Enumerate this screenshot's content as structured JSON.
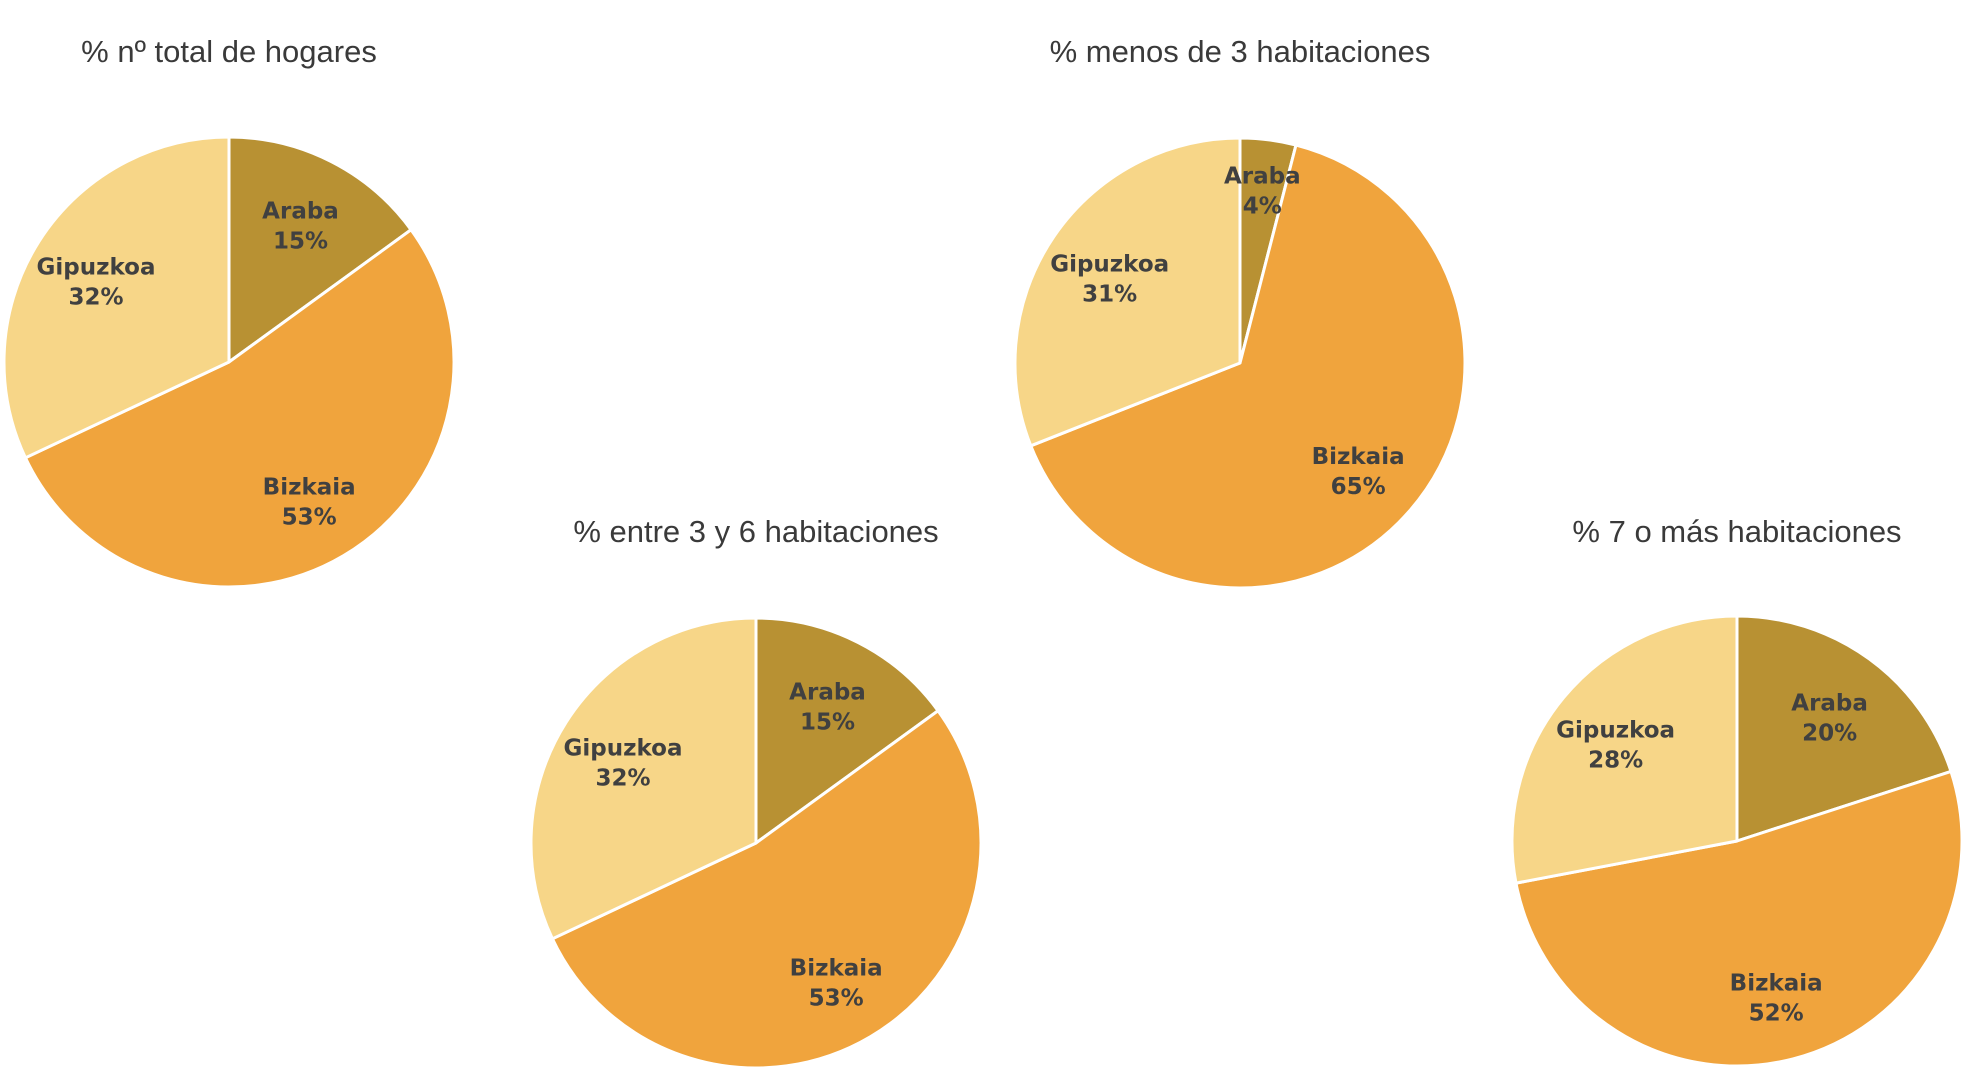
{
  "chart_data": [
    {
      "type": "pie",
      "title": "% nº total de hogares",
      "categories": [
        "Araba",
        "Bizkaia",
        "Gipuzkoa"
      ],
      "values": [
        15,
        53,
        32
      ],
      "labels": [
        "15%",
        "53%",
        "32%"
      ],
      "colors": [
        "#B89133",
        "#F0A43D",
        "#F7D688"
      ]
    },
    {
      "type": "pie",
      "title": "% menos de 3 habitaciones",
      "categories": [
        "Araba",
        "Bizkaia",
        "Gipuzkoa"
      ],
      "values": [
        4,
        65,
        31
      ],
      "labels": [
        "4%",
        "65%",
        "31%"
      ],
      "colors": [
        "#B89133",
        "#F0A43D",
        "#F7D688"
      ]
    },
    {
      "type": "pie",
      "title": "% entre 3 y 6 habitaciones",
      "categories": [
        "Araba",
        "Bizkaia",
        "Gipuzkoa"
      ],
      "values": [
        15,
        53,
        32
      ],
      "labels": [
        "15%",
        "53%",
        "32%"
      ],
      "colors": [
        "#B89133",
        "#F0A43D",
        "#F7D688"
      ]
    },
    {
      "type": "pie",
      "title": "% 7 o más habitaciones",
      "categories": [
        "Araba",
        "Bizkaia",
        "Gipuzkoa"
      ],
      "values": [
        20,
        52,
        28
      ],
      "labels": [
        "20%",
        "52%",
        "28%"
      ],
      "colors": [
        "#B89133",
        "#F0A43D",
        "#F7D688"
      ]
    }
  ]
}
